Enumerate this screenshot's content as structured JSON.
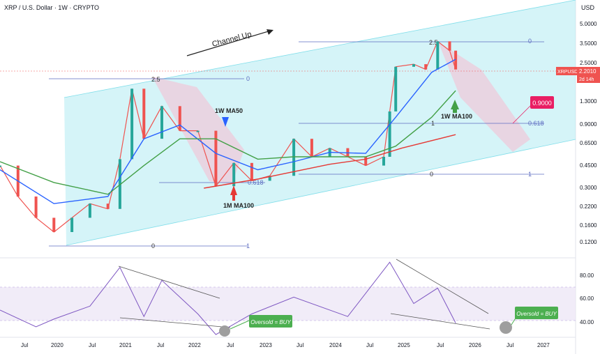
{
  "header": {
    "title": "XRP / U.S. Dollar · 1W · CRYPTO",
    "currency": "USD"
  },
  "colors": {
    "candle_up": "#26a69a",
    "candle_down": "#ef5350",
    "ma50": "#2962ff",
    "ma100_w": "#43a047",
    "ma100_m": "#e53935",
    "channel": "#b2ebf2",
    "rsi": "#7e57c2",
    "rsi_ma": "#ffb74d",
    "price_tag": "#ef5350",
    "fib_line": "#5c6bc0",
    "oversold": "#4caf50",
    "target_box": "#e91e63"
  },
  "price_axis": {
    "ticks": [
      "5.0000",
      "3.5000",
      "2.5000",
      "1.3000",
      "0.9000",
      "0.6500",
      "0.4500",
      "0.3000",
      "0.2200",
      "0.1600",
      "0.1200"
    ]
  },
  "price_tag": {
    "symbol": "XRPUSD",
    "value": "2.2010",
    "countdown": "2d 14h"
  },
  "rsi_axis": {
    "ticks": [
      "80.00",
      "60.00",
      "40.00"
    ]
  },
  "time_axis": {
    "ticks": [
      "Jul",
      "2020",
      "Jul",
      "2021",
      "Jul",
      "2022",
      "Jul",
      "2023",
      "Jul",
      "2024",
      "Jul",
      "2025",
      "Jul",
      "2026",
      "Jul",
      "2027"
    ]
  },
  "annotations": {
    "channel_up": "Channel Up",
    "ma50_label": "1W MA50",
    "ma100_w_label": "1W MA100",
    "ma100_m_label": "1M MA100",
    "target": "0.9000",
    "oversold_1": "Oversold = BUY",
    "oversold_2": "Oversold = BUY"
  },
  "fib_sets": [
    {
      "levels": [
        "2.5",
        "0.618",
        "0",
        "1"
      ]
    },
    {
      "levels": [
        "2.5",
        "0",
        "1",
        "0.618",
        "0",
        "1"
      ]
    }
  ],
  "chart_data": {
    "type": "line",
    "title": "XRP / U.S. Dollar · 1W · CRYPTO",
    "y_scale": "log",
    "ylim": [
      0.11,
      5.5
    ],
    "x_range": [
      "2019-06",
      "2027-06"
    ],
    "series": [
      {
        "name": "XRPUSD",
        "points": [
          [
            "2019-06",
            0.45
          ],
          [
            "2019-09",
            0.27
          ],
          [
            "2019-12",
            0.19
          ],
          [
            "2020-03",
            0.15
          ],
          [
            "2020-06",
            0.19
          ],
          [
            "2020-09",
            0.24
          ],
          [
            "2020-12",
            0.22
          ],
          [
            "2021-02",
            0.5
          ],
          [
            "2021-04",
            1.6
          ],
          [
            "2021-06",
            0.7
          ],
          [
            "2021-09",
            1.2
          ],
          [
            "2021-12",
            0.8
          ],
          [
            "2022-03",
            0.8
          ],
          [
            "2022-06",
            0.32
          ],
          [
            "2022-09",
            0.47
          ],
          [
            "2022-12",
            0.35
          ],
          [
            "2023-03",
            0.38
          ],
          [
            "2023-07",
            0.7
          ],
          [
            "2023-10",
            0.52
          ],
          [
            "2024-01",
            0.6
          ],
          [
            "2024-04",
            0.52
          ],
          [
            "2024-07",
            0.45
          ],
          [
            "2024-10",
            0.52
          ],
          [
            "2024-11",
            1.1
          ],
          [
            "2024-12",
            2.3
          ],
          [
            "2025-03",
            2.4
          ],
          [
            "2025-05",
            2.2
          ],
          [
            "2025-07",
            3.5
          ],
          [
            "2025-09",
            3.0
          ],
          [
            "2025-10",
            2.2
          ]
        ]
      },
      {
        "name": "1W MA50",
        "points": [
          [
            "2019-06",
            0.42
          ],
          [
            "2020-03",
            0.24
          ],
          [
            "2020-12",
            0.27
          ],
          [
            "2021-06",
            0.7
          ],
          [
            "2021-12",
            0.88
          ],
          [
            "2022-06",
            0.55
          ],
          [
            "2023-01",
            0.42
          ],
          [
            "2023-07",
            0.48
          ],
          [
            "2024-01",
            0.56
          ],
          [
            "2024-07",
            0.55
          ],
          [
            "2024-12",
            1.0
          ],
          [
            "2025-06",
            2.1
          ],
          [
            "2025-10",
            2.6
          ]
        ]
      },
      {
        "name": "1W MA100",
        "points": [
          [
            "2019-06",
            0.48
          ],
          [
            "2020-03",
            0.34
          ],
          [
            "2020-12",
            0.28
          ],
          [
            "2021-06",
            0.45
          ],
          [
            "2021-12",
            0.7
          ],
          [
            "2022-06",
            0.7
          ],
          [
            "2023-01",
            0.5
          ],
          [
            "2023-07",
            0.52
          ],
          [
            "2024-01",
            0.52
          ],
          [
            "2024-07",
            0.52
          ],
          [
            "2024-12",
            0.62
          ],
          [
            "2025-06",
            1.0
          ],
          [
            "2025-10",
            1.55
          ]
        ]
      },
      {
        "name": "1M MA100",
        "points": [
          [
            "2022-04",
            0.31
          ],
          [
            "2023-01",
            0.36
          ],
          [
            "2024-01",
            0.46
          ],
          [
            "2024-07",
            0.5
          ],
          [
            "2025-01",
            0.6
          ],
          [
            "2025-10",
            0.75
          ]
        ]
      }
    ],
    "rsi": {
      "ylim": [
        35,
        90
      ],
      "values": [
        [
          "2019-06",
          55
        ],
        [
          "2019-12",
          42
        ],
        [
          "2020-03",
          48
        ],
        [
          "2020-09",
          58
        ],
        [
          "2021-02",
          88
        ],
        [
          "2021-06",
          50
        ],
        [
          "2021-09",
          78
        ],
        [
          "2022-03",
          52
        ],
        [
          "2022-06",
          36
        ],
        [
          "2022-12",
          52
        ],
        [
          "2023-07",
          65
        ],
        [
          "2024-04",
          50
        ],
        [
          "2024-11",
          92
        ],
        [
          "2025-03",
          60
        ],
        [
          "2025-07",
          72
        ],
        [
          "2025-10",
          45
        ]
      ]
    }
  }
}
